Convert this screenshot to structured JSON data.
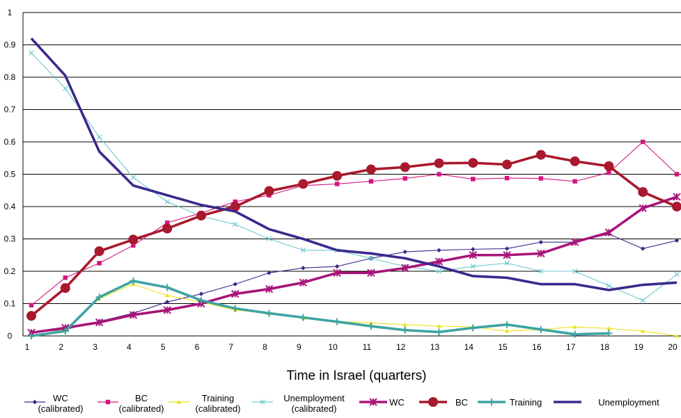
{
  "chart_data": {
    "type": "line",
    "title": "",
    "xlabel": "Time in Israel (quarters)",
    "ylabel": "",
    "xlim": [
      1,
      20
    ],
    "ylim": [
      0,
      1
    ],
    "x_ticks": [
      "1",
      "2",
      "3",
      "4",
      "5",
      "6",
      "7",
      "8",
      "9",
      "10",
      "11",
      "12",
      "13",
      "14",
      "15",
      "16",
      "17",
      "18",
      "19",
      "20"
    ],
    "y_ticks": [
      "0",
      "0.1",
      "0.2",
      "0.3",
      "0.4",
      "0.5",
      "0.6",
      "0.7",
      "0.8",
      "0.9",
      "1"
    ],
    "grid": "horizontal",
    "legend_position": "bottom",
    "series": [
      {
        "name": "WC (calibrated)",
        "legend_lines": [
          "WC",
          "(calibrated)"
        ],
        "color": "#3a2a8c",
        "marker": "diamond",
        "style": "thin",
        "x": [
          1,
          2,
          3,
          4,
          5,
          6,
          7,
          8,
          9,
          10,
          11,
          12,
          13,
          14,
          15,
          16,
          17,
          18,
          19,
          20
        ],
        "y": [
          0.01,
          0.02,
          0.045,
          0.07,
          0.105,
          0.13,
          0.16,
          0.195,
          0.21,
          0.215,
          0.24,
          0.26,
          0.265,
          0.268,
          0.27,
          0.29,
          0.29,
          0.315,
          0.27,
          0.295
        ]
      },
      {
        "name": "BC (calibrated)",
        "legend_lines": [
          "BC",
          "(calibrated)"
        ],
        "color": "#d6147e",
        "marker": "square",
        "style": "thin",
        "x": [
          1,
          2,
          3,
          4,
          5,
          6,
          7,
          8,
          9,
          10,
          11,
          12,
          13,
          14,
          15,
          16,
          17,
          18,
          19,
          20
        ],
        "y": [
          0.095,
          0.18,
          0.225,
          0.28,
          0.35,
          0.38,
          0.415,
          0.435,
          0.465,
          0.47,
          0.478,
          0.487,
          0.5,
          0.485,
          0.488,
          0.487,
          0.478,
          0.505,
          0.6,
          0.5
        ]
      },
      {
        "name": "Training (calibrated)",
        "legend_lines": [
          "Training",
          "(calibrated)"
        ],
        "color": "#f0e21a",
        "marker": "triangle",
        "style": "thin",
        "x": [
          1,
          2,
          3,
          4,
          5,
          6,
          7,
          8,
          9,
          10,
          11,
          12,
          13,
          14,
          15,
          16,
          17,
          18,
          19,
          20
        ],
        "y": [
          0,
          0.02,
          0.115,
          0.16,
          0.125,
          0.105,
          0.08,
          0.07,
          0.055,
          0.045,
          0.04,
          0.035,
          0.03,
          0.028,
          0.015,
          0.02,
          0.028,
          0.023,
          0.015,
          0
        ]
      },
      {
        "name": "Unemployment (calibrated)",
        "legend_lines": [
          "Unemployment",
          "(calibrated)"
        ],
        "color": "#6cc9cf",
        "marker": "x",
        "style": "thin",
        "x": [
          1,
          2,
          3,
          4,
          5,
          6,
          7,
          8,
          9,
          10,
          11,
          12,
          13,
          14,
          15,
          16,
          17,
          18,
          19,
          20
        ],
        "y": [
          0.875,
          0.765,
          0.615,
          0.49,
          0.415,
          0.37,
          0.345,
          0.3,
          0.265,
          0.265,
          0.24,
          0.215,
          0.2,
          0.215,
          0.225,
          0.2,
          0.2,
          0.155,
          0.11,
          0.19
        ]
      },
      {
        "name": "WC",
        "legend_lines": [
          "WC"
        ],
        "color": "#a8147a",
        "marker": "asterisk",
        "style": "thick",
        "x": [
          1,
          2,
          3,
          4,
          5,
          6,
          7,
          8,
          9,
          10,
          11,
          12,
          13,
          14,
          15,
          16,
          17,
          18,
          19,
          20
        ],
        "y": [
          0.01,
          0.025,
          0.042,
          0.065,
          0.08,
          0.1,
          0.13,
          0.145,
          0.165,
          0.195,
          0.195,
          0.21,
          0.23,
          0.25,
          0.25,
          0.255,
          0.29,
          0.32,
          0.395,
          0.43
        ]
      },
      {
        "name": "BC",
        "legend_lines": [
          "BC"
        ],
        "color": "#a8192d",
        "marker": "circle",
        "style": "thick",
        "x": [
          1,
          2,
          3,
          4,
          5,
          6,
          7,
          8,
          9,
          10,
          11,
          12,
          13,
          14,
          15,
          16,
          17,
          18,
          19,
          20
        ],
        "y": [
          0.062,
          0.148,
          0.262,
          0.298,
          0.332,
          0.372,
          0.4,
          0.448,
          0.47,
          0.495,
          0.515,
          0.522,
          0.534,
          0.535,
          0.53,
          0.56,
          0.54,
          0.525,
          0.445,
          0.4
        ]
      },
      {
        "name": "Training",
        "legend_lines": [
          "Training"
        ],
        "color": "#3ea3a3",
        "marker": "plus",
        "style": "thick",
        "x": [
          1,
          2,
          3,
          4,
          5,
          6,
          7,
          8,
          9,
          10,
          11,
          12,
          13,
          14,
          15,
          16,
          17,
          18
        ],
        "y": [
          0,
          0.015,
          0.12,
          0.17,
          0.15,
          0.11,
          0.085,
          0.07,
          0.057,
          0.044,
          0.03,
          0.018,
          0.012,
          0.025,
          0.035,
          0.02,
          0.005,
          0.008
        ]
      },
      {
        "name": "Unemployment",
        "legend_lines": [
          "Unemployment"
        ],
        "color": "#3a2a8c",
        "marker": "none",
        "style": "thick",
        "x": [
          1,
          2,
          3,
          4,
          5,
          6,
          7,
          8,
          9,
          10,
          11,
          12,
          13,
          14,
          15,
          16,
          17,
          18,
          19,
          20
        ],
        "y": [
          0.92,
          0.805,
          0.57,
          0.465,
          0.435,
          0.405,
          0.385,
          0.33,
          0.3,
          0.265,
          0.255,
          0.24,
          0.215,
          0.185,
          0.18,
          0.16,
          0.16,
          0.142,
          0.158,
          0.165
        ]
      }
    ]
  }
}
